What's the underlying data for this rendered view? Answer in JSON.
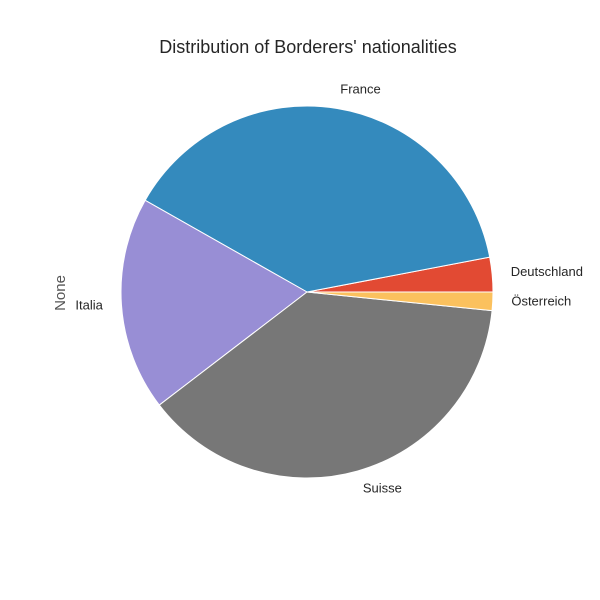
{
  "chart_data": {
    "type": "pie",
    "title": "Distribution of Borderers' nationalities",
    "ylabel": "None",
    "categories": [
      "Deutschland",
      "France",
      "Italia",
      "Suisse",
      "Österreich"
    ],
    "values": [
      3.0,
      38.8,
      18.6,
      38.0,
      1.6
    ],
    "colors": [
      "#E24A33",
      "#348ABD",
      "#988ED5",
      "#777777",
      "#FBC15E"
    ],
    "start_angle_deg": 0,
    "direction": "counterclockwise",
    "legend": "none"
  }
}
